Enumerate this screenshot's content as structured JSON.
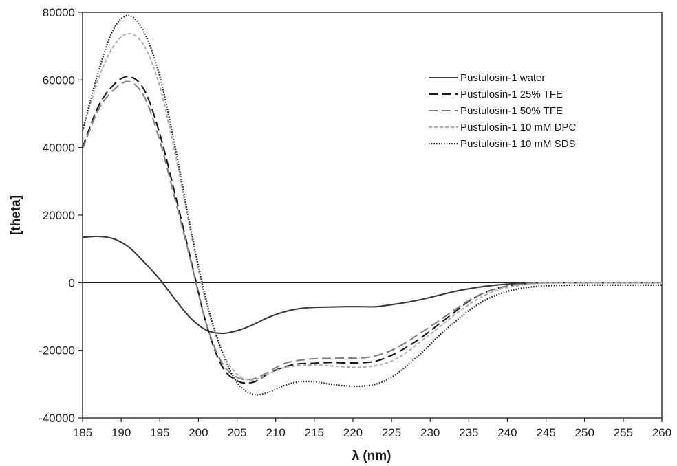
{
  "chart_data": {
    "type": "line",
    "title": "",
    "xlabel": "λ (nm)",
    "ylabel": "[theta]",
    "xlim": [
      185,
      260
    ],
    "ylim": [
      -40000,
      80000
    ],
    "x_ticks": [
      "185",
      "190",
      "195",
      "200",
      "205",
      "210",
      "215",
      "220",
      "225",
      "230",
      "235",
      "240",
      "245",
      "250",
      "255",
      "260"
    ],
    "y_ticks": [
      "80000",
      "60000",
      "40000",
      "20000",
      "0",
      "-20000",
      "-40000"
    ],
    "grid": false,
    "legend_position": "top-right",
    "zero_line": true,
    "series": [
      {
        "name": "Pustulosin-1 water",
        "color": "#3a3a3a",
        "dash": "solid",
        "x": [
          185,
          187,
          189,
          191,
          193,
          195,
          197,
          199,
          201,
          203,
          205,
          207,
          209,
          211,
          213,
          215,
          217,
          219,
          221,
          223,
          225,
          227,
          229,
          231,
          233,
          235,
          237,
          239,
          241,
          243,
          245,
          250,
          255,
          260
        ],
        "y": [
          13400,
          13700,
          13000,
          10500,
          6000,
          1000,
          -5000,
          -10500,
          -14000,
          -15000,
          -14200,
          -12500,
          -10300,
          -8700,
          -7700,
          -7300,
          -7200,
          -7100,
          -7100,
          -7100,
          -6500,
          -5800,
          -4900,
          -3800,
          -2700,
          -1800,
          -1100,
          -600,
          -300,
          -100,
          0,
          0,
          0,
          0
        ]
      },
      {
        "name": "Pustulosin-1 25% TFE",
        "color": "#1a1a1a",
        "dash": "long",
        "x": [
          185,
          187,
          189,
          191,
          193,
          195,
          197,
          199,
          201,
          203,
          205,
          207,
          209,
          211,
          213,
          215,
          217,
          219,
          221,
          223,
          225,
          227,
          229,
          231,
          233,
          235,
          237,
          239,
          241,
          243,
          245,
          250,
          255,
          260
        ],
        "y": [
          40000,
          52000,
          58500,
          61000,
          57000,
          44000,
          26000,
          7000,
          -12000,
          -24500,
          -29000,
          -29500,
          -27000,
          -25000,
          -24000,
          -23800,
          -23600,
          -23700,
          -23700,
          -23200,
          -21500,
          -19000,
          -16000,
          -12500,
          -9000,
          -5500,
          -3000,
          -1500,
          -600,
          -200,
          0,
          0,
          0,
          0
        ]
      },
      {
        "name": "Pustulosin-1 50% TFE",
        "color": "#808080",
        "dash": "long",
        "x": [
          185,
          187,
          189,
          191,
          193,
          195,
          197,
          199,
          201,
          203,
          205,
          207,
          209,
          211,
          213,
          215,
          217,
          219,
          221,
          223,
          225,
          227,
          229,
          231,
          233,
          235,
          237,
          239,
          241,
          243,
          245,
          250,
          255,
          260
        ],
        "y": [
          39500,
          51000,
          57000,
          59500,
          55000,
          42000,
          24500,
          6500,
          -12000,
          -23500,
          -28000,
          -28500,
          -26500,
          -24000,
          -23000,
          -22500,
          -22400,
          -22300,
          -22300,
          -21600,
          -20000,
          -17500,
          -14500,
          -11500,
          -8300,
          -5300,
          -3000,
          -1500,
          -600,
          -200,
          0,
          0,
          0,
          0
        ]
      },
      {
        "name": "Pustulosin-1 10 mM DPC",
        "color": "#b0b0b0",
        "dash": "short",
        "x": [
          185,
          187,
          189,
          191,
          193,
          195,
          197,
          199,
          201,
          203,
          205,
          207,
          209,
          211,
          213,
          215,
          217,
          219,
          221,
          223,
          225,
          227,
          229,
          231,
          233,
          235,
          237,
          239,
          241,
          243,
          245,
          250,
          255,
          260
        ],
        "y": [
          45000,
          60000,
          70000,
          73700,
          70000,
          58000,
          38000,
          15000,
          -6000,
          -20000,
          -27000,
          -28800,
          -27000,
          -25200,
          -24500,
          -24300,
          -24600,
          -24900,
          -25000,
          -24500,
          -23200,
          -20500,
          -17000,
          -13500,
          -9800,
          -6500,
          -3800,
          -2000,
          -1000,
          -400,
          -100,
          0,
          0,
          0
        ]
      },
      {
        "name": "Pustulosin-1 10 mM SDS",
        "color": "#1a1a1a",
        "dash": "dotted",
        "x": [
          185,
          187,
          189,
          191,
          193,
          195,
          197,
          199,
          201,
          203,
          205,
          207,
          209,
          211,
          213,
          215,
          217,
          219,
          221,
          223,
          225,
          227,
          229,
          231,
          233,
          235,
          237,
          239,
          241,
          243,
          245,
          250,
          255,
          260
        ],
        "y": [
          45000,
          62000,
          75000,
          79000,
          74000,
          61000,
          40000,
          16000,
          -5000,
          -20000,
          -29500,
          -33000,
          -32500,
          -30500,
          -29300,
          -29300,
          -30000,
          -30500,
          -30600,
          -30000,
          -28000,
          -24500,
          -20500,
          -16000,
          -12000,
          -8300,
          -5300,
          -3300,
          -2000,
          -1300,
          -900,
          -700,
          -700,
          -700
        ]
      }
    ]
  }
}
